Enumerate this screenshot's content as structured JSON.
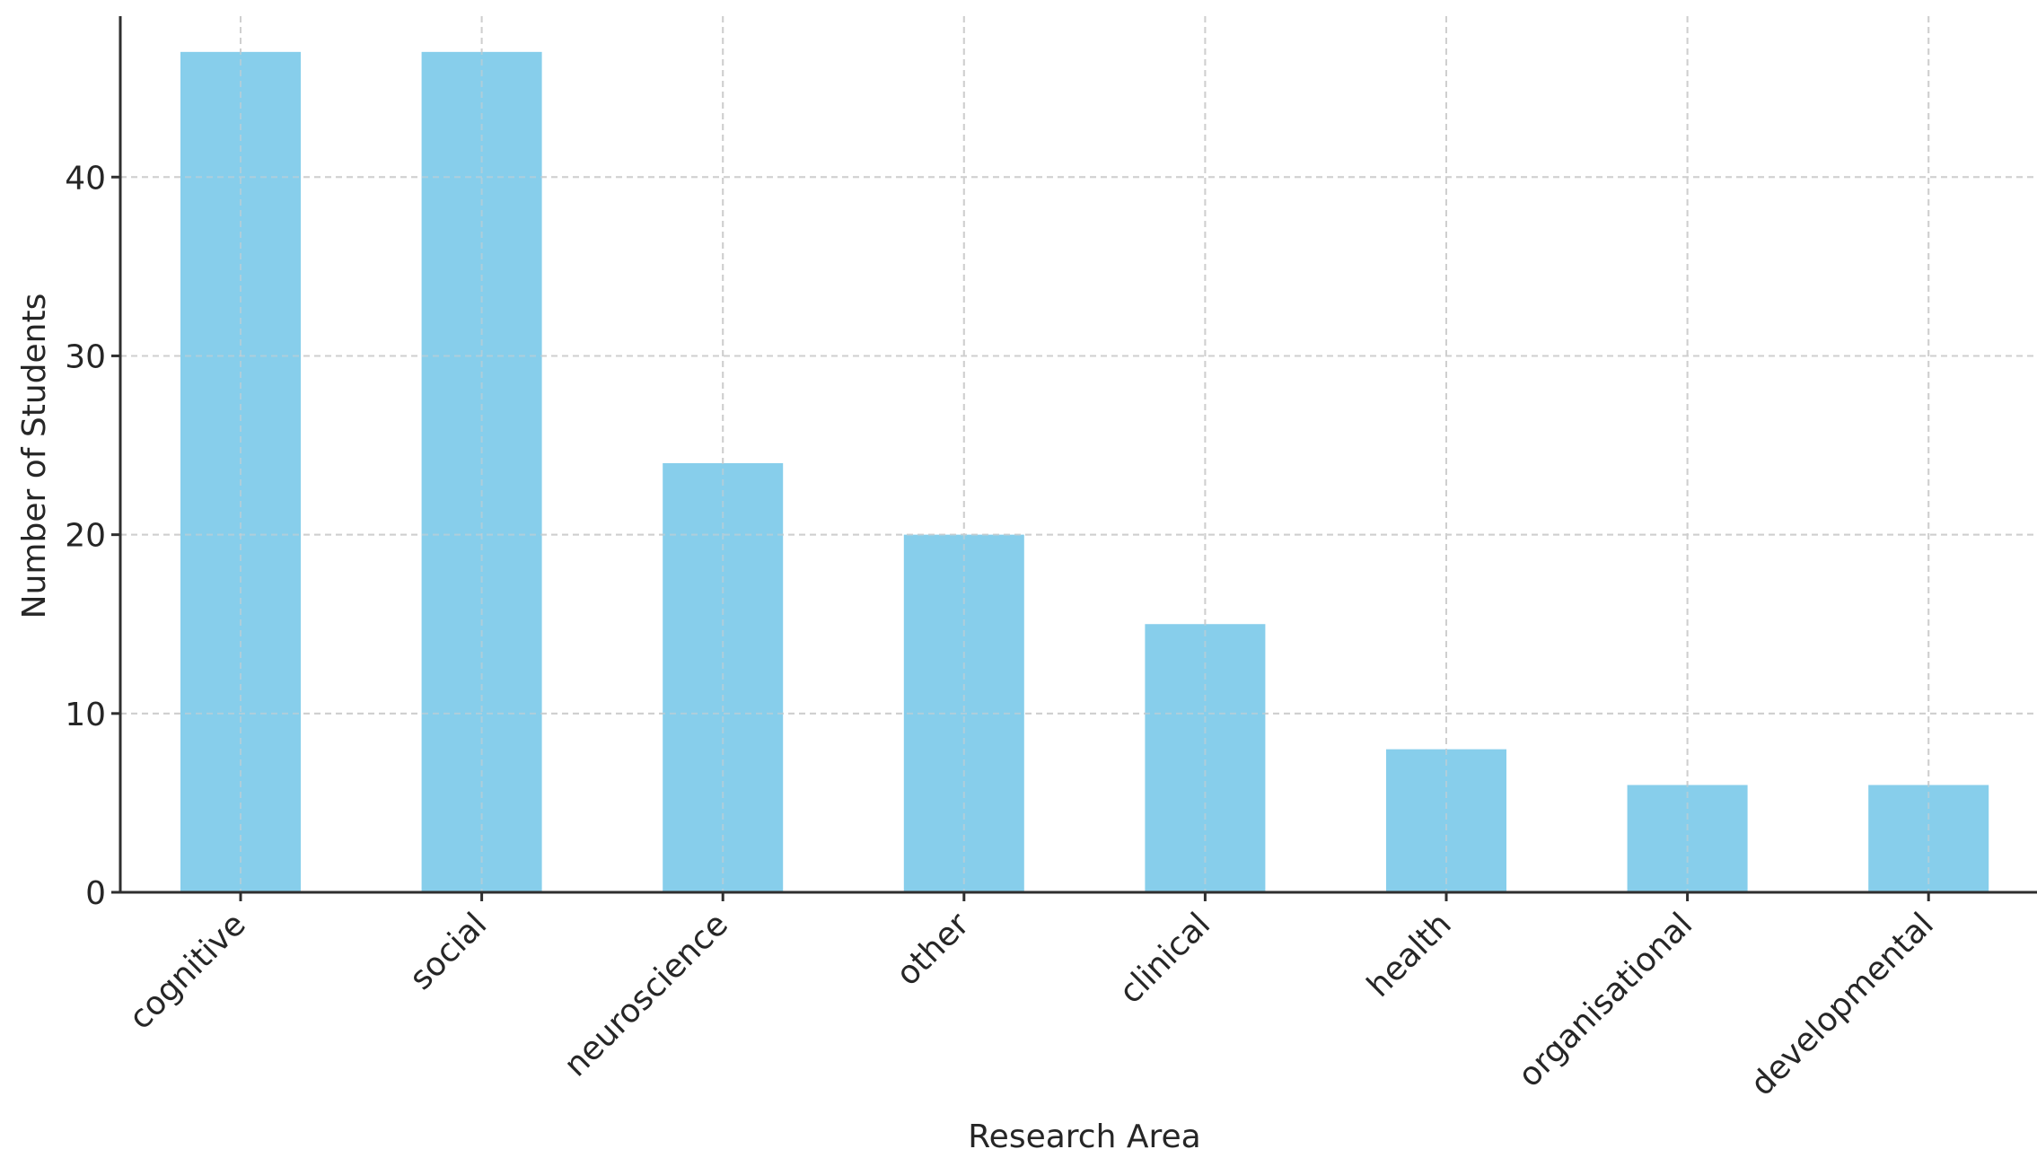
{
  "chart_data": {
    "type": "bar",
    "title": "",
    "xlabel": "Research Area",
    "ylabel": "Number of Students",
    "categories": [
      "cognitive",
      "social",
      "neuroscience",
      "other",
      "clinical",
      "health",
      "organisational",
      "developmental"
    ],
    "values": [
      47,
      47,
      24,
      20,
      15,
      8,
      6,
      6
    ],
    "ylim": [
      0,
      49
    ],
    "yticks": [
      0,
      10,
      20,
      30,
      40
    ],
    "grid": true,
    "bar_color": "#87ceeb",
    "legend": "none"
  }
}
